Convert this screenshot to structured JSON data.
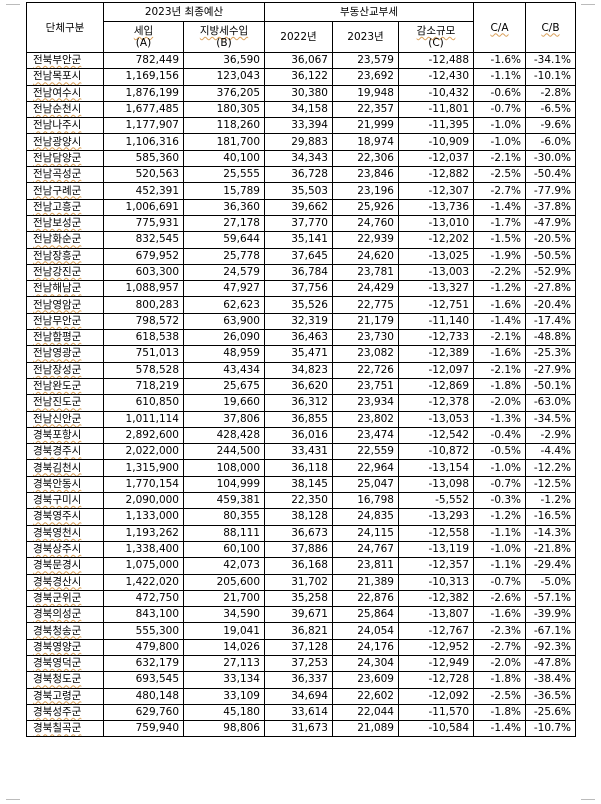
{
  "header": {
    "unit_col": "단체구분",
    "group_budget": "2023년 최종예산",
    "group_tax": "부동산교부세",
    "col_a": "세입",
    "col_a_sub": "(A)",
    "col_b": "지방세수입",
    "col_b_sub": "(B)",
    "col_2022": "2022년",
    "col_2023": "2023년",
    "col_c": "감소규모",
    "col_c_sub": "(C)",
    "col_ca": "C/A",
    "col_cb": "C/B"
  },
  "rows": [
    [
      "전북부안군",
      "782,449",
      "36,590",
      "36,067",
      "23,579",
      "-12,488",
      "-1.6%",
      "-34.1%"
    ],
    [
      "전남목포시",
      "1,169,156",
      "123,043",
      "36,122",
      "23,692",
      "-12,430",
      "-1.1%",
      "-10.1%"
    ],
    [
      "전남여수시",
      "1,876,199",
      "376,205",
      "30,380",
      "19,948",
      "-10,432",
      "-0.6%",
      "-2.8%"
    ],
    [
      "전남순천시",
      "1,677,485",
      "180,305",
      "34,158",
      "22,357",
      "-11,801",
      "-0.7%",
      "-6.5%"
    ],
    [
      "전남나주시",
      "1,177,907",
      "118,260",
      "33,394",
      "21,999",
      "-11,395",
      "-1.0%",
      "-9.6%"
    ],
    [
      "전남광양시",
      "1,106,316",
      "181,700",
      "29,883",
      "18,974",
      "-10,909",
      "-1.0%",
      "-6.0%"
    ],
    [
      "전남담양군",
      "585,360",
      "40,100",
      "34,343",
      "22,306",
      "-12,037",
      "-2.1%",
      "-30.0%"
    ],
    [
      "전남곡성군",
      "520,563",
      "25,555",
      "36,728",
      "23,846",
      "-12,882",
      "-2.5%",
      "-50.4%"
    ],
    [
      "전남구례군",
      "452,391",
      "15,789",
      "35,503",
      "23,196",
      "-12,307",
      "-2.7%",
      "-77.9%"
    ],
    [
      "전남고흥군",
      "1,006,691",
      "36,360",
      "39,662",
      "25,926",
      "-13,736",
      "-1.4%",
      "-37.8%"
    ],
    [
      "전남보성군",
      "775,931",
      "27,178",
      "37,770",
      "24,760",
      "-13,010",
      "-1.7%",
      "-47.9%"
    ],
    [
      "전남화순군",
      "832,545",
      "59,644",
      "35,141",
      "22,939",
      "-12,202",
      "-1.5%",
      "-20.5%"
    ],
    [
      "전남장흥군",
      "679,952",
      "25,778",
      "37,645",
      "24,620",
      "-13,025",
      "-1.9%",
      "-50.5%"
    ],
    [
      "전남강진군",
      "603,300",
      "24,579",
      "36,784",
      "23,781",
      "-13,003",
      "-2.2%",
      "-52.9%"
    ],
    [
      "전남해남군",
      "1,088,957",
      "47,927",
      "37,756",
      "24,429",
      "-13,327",
      "-1.2%",
      "-27.8%"
    ],
    [
      "전남영암군",
      "800,283",
      "62,623",
      "35,526",
      "22,775",
      "-12,751",
      "-1.6%",
      "-20.4%"
    ],
    [
      "전남무안군",
      "798,572",
      "63,900",
      "32,319",
      "21,179",
      "-11,140",
      "-1.4%",
      "-17.4%"
    ],
    [
      "전남함평군",
      "618,538",
      "26,090",
      "36,463",
      "23,730",
      "-12,733",
      "-2.1%",
      "-48.8%"
    ],
    [
      "전남영광군",
      "751,013",
      "48,959",
      "35,471",
      "23,082",
      "-12,389",
      "-1.6%",
      "-25.3%"
    ],
    [
      "전남장성군",
      "578,528",
      "43,434",
      "34,823",
      "22,726",
      "-12,097",
      "-2.1%",
      "-27.9%"
    ],
    [
      "전남완도군",
      "718,219",
      "25,675",
      "36,620",
      "23,751",
      "-12,869",
      "-1.8%",
      "-50.1%"
    ],
    [
      "전남진도군",
      "610,850",
      "19,660",
      "36,312",
      "23,934",
      "-12,378",
      "-2.0%",
      "-63.0%"
    ],
    [
      "전남신안군",
      "1,011,114",
      "37,806",
      "36,855",
      "23,802",
      "-13,053",
      "-1.3%",
      "-34.5%"
    ],
    [
      "경북포항시",
      "2,892,600",
      "428,428",
      "36,016",
      "23,474",
      "-12,542",
      "-0.4%",
      "-2.9%"
    ],
    [
      "경북경주시",
      "2,022,000",
      "244,500",
      "33,431",
      "22,559",
      "-10,872",
      "-0.5%",
      "-4.4%"
    ],
    [
      "경북김천시",
      "1,315,900",
      "108,000",
      "36,118",
      "22,964",
      "-13,154",
      "-1.0%",
      "-12.2%"
    ],
    [
      "경북안동시",
      "1,770,154",
      "104,999",
      "38,145",
      "25,047",
      "-13,098",
      "-0.7%",
      "-12.5%"
    ],
    [
      "경북구미시",
      "2,090,000",
      "459,381",
      "22,350",
      "16,798",
      "-5,552",
      "-0.3%",
      "-1.2%"
    ],
    [
      "경북영주시",
      "1,133,000",
      "80,355",
      "38,128",
      "24,835",
      "-13,293",
      "-1.2%",
      "-16.5%"
    ],
    [
      "경북영천시",
      "1,193,262",
      "88,111",
      "36,673",
      "24,115",
      "-12,558",
      "-1.1%",
      "-14.3%"
    ],
    [
      "경북상주시",
      "1,338,400",
      "60,100",
      "37,886",
      "24,767",
      "-13,119",
      "-1.0%",
      "-21.8%"
    ],
    [
      "경북문경시",
      "1,075,000",
      "42,073",
      "36,168",
      "23,811",
      "-12,357",
      "-1.1%",
      "-29.4%"
    ],
    [
      "경북경산시",
      "1,422,020",
      "205,600",
      "31,702",
      "21,389",
      "-10,313",
      "-0.7%",
      "-5.0%"
    ],
    [
      "경북군위군",
      "472,750",
      "21,700",
      "35,258",
      "22,876",
      "-12,382",
      "-2.6%",
      "-57.1%"
    ],
    [
      "경북의성군",
      "843,100",
      "34,590",
      "39,671",
      "25,864",
      "-13,807",
      "-1.6%",
      "-39.9%"
    ],
    [
      "경북청송군",
      "555,300",
      "19,041",
      "36,821",
      "24,054",
      "-12,767",
      "-2.3%",
      "-67.1%"
    ],
    [
      "경북영양군",
      "479,800",
      "14,026",
      "37,128",
      "24,176",
      "-12,952",
      "-2.7%",
      "-92.3%"
    ],
    [
      "경북영덕군",
      "632,179",
      "27,113",
      "37,253",
      "24,304",
      "-12,949",
      "-2.0%",
      "-47.8%"
    ],
    [
      "경북청도군",
      "693,545",
      "33,134",
      "36,337",
      "23,609",
      "-12,728",
      "-1.8%",
      "-38.4%"
    ],
    [
      "경북고령군",
      "480,148",
      "33,109",
      "34,694",
      "22,602",
      "-12,092",
      "-2.5%",
      "-36.5%"
    ],
    [
      "경북성주군",
      "629,760",
      "45,180",
      "33,614",
      "22,044",
      "-11,570",
      "-1.8%",
      "-25.6%"
    ],
    [
      "경북칠곡군",
      "759,940",
      "98,806",
      "31,673",
      "21,089",
      "-10,584",
      "-1.4%",
      "-10.7%"
    ]
  ]
}
